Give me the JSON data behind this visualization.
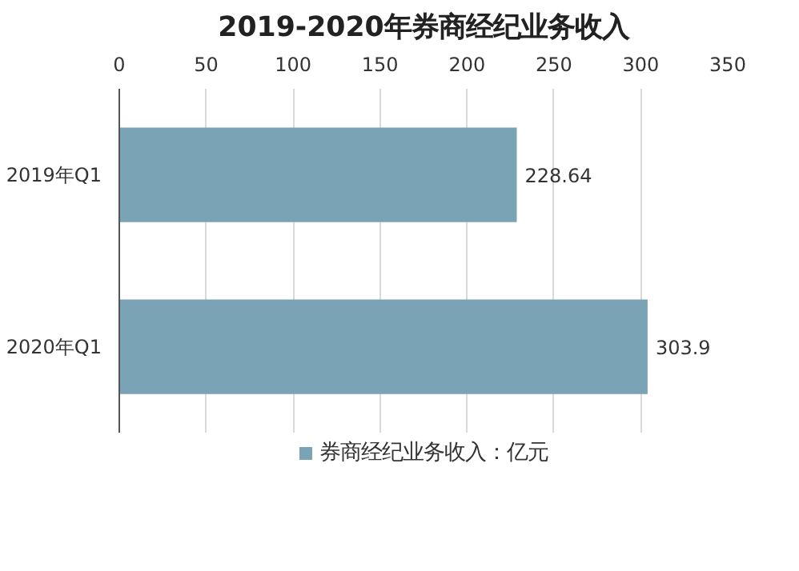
{
  "chart_data": {
    "type": "bar",
    "orientation": "horizontal",
    "title": "2019-2020年券商经纪业务收入",
    "categories": [
      "2019年Q1",
      "2020年Q1"
    ],
    "series": [
      {
        "name": "券商经纪业务收入：亿元",
        "color": "#7aa3b5",
        "values": [
          228.64,
          303.9
        ]
      }
    ],
    "value_labels": [
      "228.64",
      "303.9"
    ],
    "xlim": [
      0,
      350
    ],
    "xticks": [
      0,
      50,
      100,
      150,
      200,
      250,
      300,
      350
    ],
    "grid": "x",
    "legend": "bottom"
  }
}
